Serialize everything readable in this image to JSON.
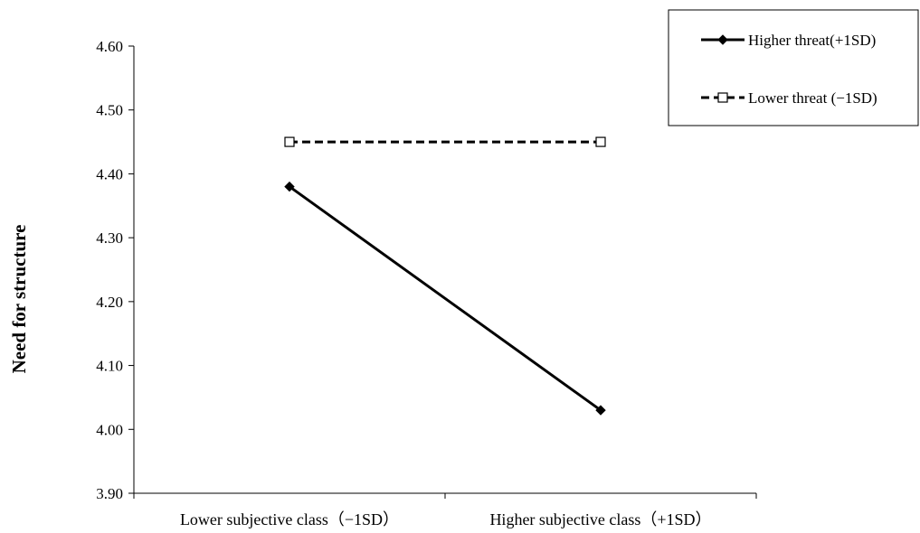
{
  "chart_data": {
    "type": "line",
    "title": "",
    "xlabel": "",
    "ylabel": "Need for structure",
    "categories": [
      "Lower subjective class（−1SD）",
      "Higher subjective class（+1SD）"
    ],
    "series": [
      {
        "name": "Higher threat(+1SD)",
        "values": [
          4.38,
          4.03
        ],
        "line_style": "solid",
        "marker": "filled-diamond",
        "color": "#000000"
      },
      {
        "name": "Lower threat (−1SD)",
        "values": [
          4.45,
          4.45
        ],
        "line_style": "dashed",
        "marker": "open-square",
        "color": "#000000"
      }
    ],
    "ylim": [
      3.9,
      4.6
    ],
    "yticks": [
      "3.90",
      "4.00",
      "4.10",
      "4.20",
      "4.30",
      "4.40",
      "4.50",
      "4.60"
    ],
    "grid": false,
    "legend_position": "top-right"
  }
}
